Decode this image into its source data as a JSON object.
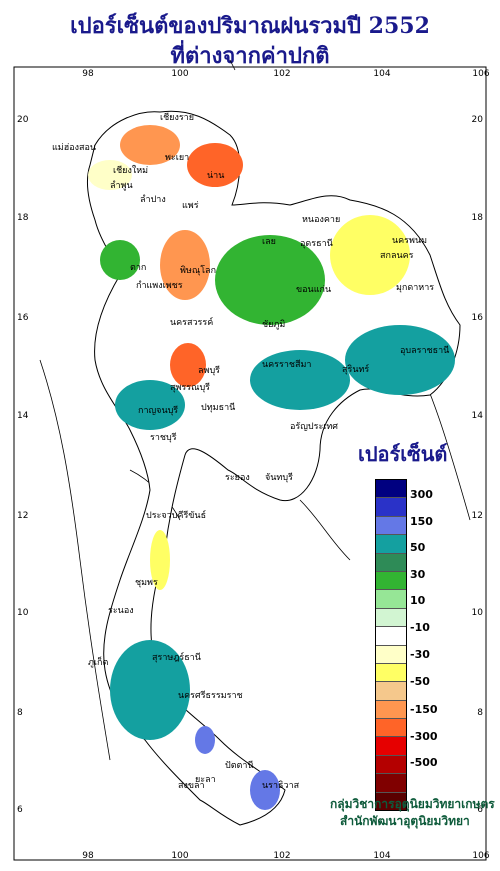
{
  "title_line1": "เปอร์เซ็นต์ของปริมาณฝนรวมปี 2552",
  "title_line2": "ที่ต่างจากค่าปกติ",
  "legend": {
    "title": "เปอร์เซ็นต์",
    "labels": [
      "300",
      "150",
      "50",
      "30",
      "10",
      "-10",
      "-30",
      "-50",
      "-150",
      "-300",
      "-500"
    ],
    "colors": [
      "#000080",
      "#2a32c8",
      "#6478e6",
      "#14a0a0",
      "#2e8b57",
      "#32b432",
      "#96e696",
      "#d2f5d2",
      "#ffffff",
      "#ffffc8",
      "#ffff64",
      "#f5c88c",
      "#ff9650",
      "#ff6428",
      "#e60000",
      "#b40000",
      "#800000",
      "#5a0000"
    ]
  },
  "axes": {
    "x_ticks": [
      "98",
      "100",
      "102",
      "104",
      "106"
    ],
    "y_ticks": [
      "20",
      "18",
      "16",
      "14",
      "12",
      "10",
      "8",
      "6"
    ]
  },
  "places": [
    {
      "name": "เชียงราย"
    },
    {
      "name": "แม่ฮ่องสอน"
    },
    {
      "name": "เชียงใหม่"
    },
    {
      "name": "ลำพูน"
    },
    {
      "name": "พะเยา"
    },
    {
      "name": "น่าน"
    },
    {
      "name": "ลำปาง"
    },
    {
      "name": "แพร่"
    },
    {
      "name": "หนองคาย"
    },
    {
      "name": "อุดรธานี"
    },
    {
      "name": "นครพนม"
    },
    {
      "name": "สกลนคร"
    },
    {
      "name": "เลย"
    },
    {
      "name": "ตาก"
    },
    {
      "name": "พิษณุโลก"
    },
    {
      "name": "มุกดาหาร"
    },
    {
      "name": "กำแพงเพชร"
    },
    {
      "name": "ขอนแก่น"
    },
    {
      "name": "ชัยภูมิ"
    },
    {
      "name": "นครสวรรค์"
    },
    {
      "name": "อุบลราชธานี"
    },
    {
      "name": "ลพบุรี"
    },
    {
      "name": "นครราชสีมา"
    },
    {
      "name": "สุรินทร์"
    },
    {
      "name": "สุพรรณบุรี"
    },
    {
      "name": "กาญจนบุรี"
    },
    {
      "name": "ราชบุรี"
    },
    {
      "name": "ปทุมธานี"
    },
    {
      "name": "อรัญประเทศ"
    },
    {
      "name": "ระยอง"
    },
    {
      "name": "จันทบุรี"
    },
    {
      "name": "ประจวบคีรีขันธ์"
    },
    {
      "name": "ชุมพร"
    },
    {
      "name": "ระนอง"
    },
    {
      "name": "สุราษฎร์ธานี"
    },
    {
      "name": "นครศรีธรรมราช"
    },
    {
      "name": "ภูเก็ต"
    },
    {
      "name": "สงขลา"
    },
    {
      "name": "ปัตตานี"
    },
    {
      "name": "นราธิวาส"
    },
    {
      "name": "ยะลา"
    }
  ],
  "credit": {
    "line1": "กลุ่มวิชาการอุตุนิยมวิทยาเกษตร",
    "line2": "สำนักพัฒนาอุตุนิยมวิทยา"
  }
}
